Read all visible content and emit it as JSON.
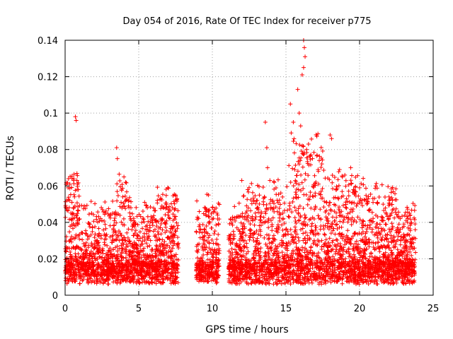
{
  "chart_data": {
    "type": "scatter",
    "title": "Day 054 of 2016, Rate Of TEC Index for receiver p775",
    "xlabel": "GPS time / hours",
    "ylabel": "ROTI / TECUs",
    "xlim": [
      0,
      25
    ],
    "ylim": [
      0,
      0.14
    ],
    "x_ticks": [
      0,
      5,
      10,
      15,
      20,
      25
    ],
    "y_ticks": [
      0,
      0.02,
      0.04,
      0.06,
      0.08,
      0.1,
      0.12,
      0.14
    ],
    "x_tick_labels": [
      "0",
      "5",
      "10",
      "15",
      "20",
      "25"
    ],
    "y_tick_labels": [
      "0",
      "0.02",
      "0.04",
      "0.06",
      "0.08",
      "0.1",
      "0.12",
      "0.14"
    ],
    "grid": true,
    "marker": "+",
    "marker_color": "#ff0000",
    "data_gaps_hours": [
      [
        7.7,
        8.9
      ],
      [
        10.5,
        11.1
      ],
      [
        23.8,
        25
      ]
    ],
    "series": [
      {
        "name": "ROTI",
        "description": "dense cloud of points, baseline ~0.005–0.03 TECU with scattered spikes",
        "points": [
          {
            "x": 0.2,
            "y": 0.059
          },
          {
            "x": 0.3,
            "y": 0.052
          },
          {
            "x": 0.5,
            "y": 0.045
          },
          {
            "x": 0.7,
            "y": 0.098
          },
          {
            "x": 0.75,
            "y": 0.096
          },
          {
            "x": 0.8,
            "y": 0.063
          },
          {
            "x": 0.85,
            "y": 0.061
          },
          {
            "x": 1.3,
            "y": 0.049
          },
          {
            "x": 1.8,
            "y": 0.045
          },
          {
            "x": 2.5,
            "y": 0.041
          },
          {
            "x": 3.5,
            "y": 0.081
          },
          {
            "x": 3.55,
            "y": 0.075
          },
          {
            "x": 3.8,
            "y": 0.051
          },
          {
            "x": 4.3,
            "y": 0.049
          },
          {
            "x": 5.4,
            "y": 0.051
          },
          {
            "x": 6.6,
            "y": 0.042
          },
          {
            "x": 7.0,
            "y": 0.047
          },
          {
            "x": 7.5,
            "y": 0.055
          },
          {
            "x": 9.8,
            "y": 0.043
          },
          {
            "x": 9.6,
            "y": 0.038
          },
          {
            "x": 12.0,
            "y": 0.063
          },
          {
            "x": 12.4,
            "y": 0.058
          },
          {
            "x": 13.0,
            "y": 0.052
          },
          {
            "x": 13.6,
            "y": 0.095
          },
          {
            "x": 13.7,
            "y": 0.081
          },
          {
            "x": 13.75,
            "y": 0.07
          },
          {
            "x": 14.2,
            "y": 0.062
          },
          {
            "x": 15.3,
            "y": 0.105
          },
          {
            "x": 15.5,
            "y": 0.095
          },
          {
            "x": 15.6,
            "y": 0.069
          },
          {
            "x": 15.8,
            "y": 0.113
          },
          {
            "x": 15.9,
            "y": 0.1
          },
          {
            "x": 16.0,
            "y": 0.093
          },
          {
            "x": 16.1,
            "y": 0.121
          },
          {
            "x": 16.2,
            "y": 0.14
          },
          {
            "x": 16.25,
            "y": 0.136
          },
          {
            "x": 16.3,
            "y": 0.131
          },
          {
            "x": 16.2,
            "y": 0.125
          },
          {
            "x": 16.4,
            "y": 0.08
          },
          {
            "x": 16.8,
            "y": 0.075
          },
          {
            "x": 17.2,
            "y": 0.068
          },
          {
            "x": 18.0,
            "y": 0.088
          },
          {
            "x": 18.1,
            "y": 0.086
          },
          {
            "x": 18.4,
            "y": 0.058
          },
          {
            "x": 19.0,
            "y": 0.066
          },
          {
            "x": 19.4,
            "y": 0.07
          },
          {
            "x": 20.0,
            "y": 0.059
          },
          {
            "x": 21.1,
            "y": 0.06
          },
          {
            "x": 21.6,
            "y": 0.05
          },
          {
            "x": 22.0,
            "y": 0.054
          },
          {
            "x": 23.4,
            "y": 0.045
          }
        ]
      }
    ]
  }
}
